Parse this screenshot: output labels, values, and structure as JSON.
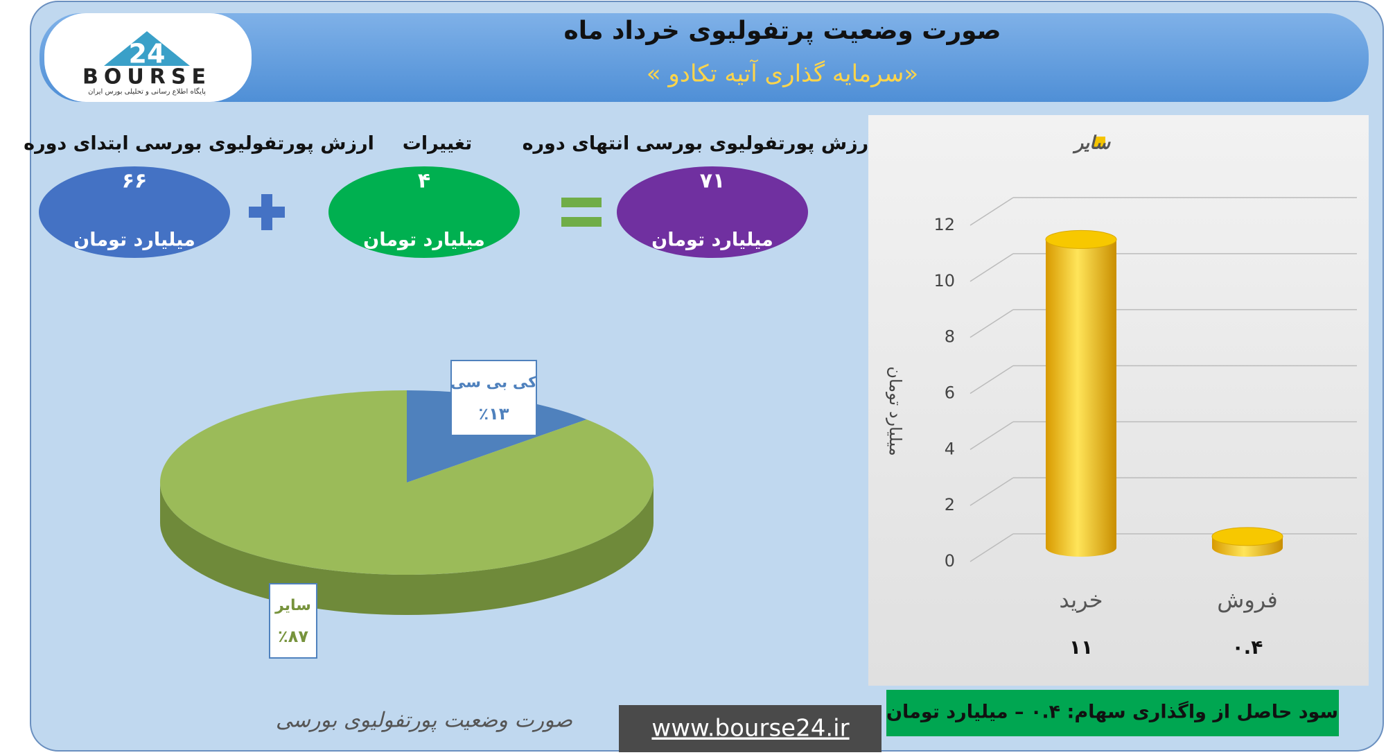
{
  "header": {
    "title": "صورت وضعیت پرتفولیوی خرداد ماه",
    "subtitle": "«سرمایه گذاری آتیه تکادو »"
  },
  "logo": {
    "number": "24",
    "text": "BOURSE",
    "tagline": "پایگاه اطلاع رسانی و تحلیلی بورس ایران"
  },
  "summary": [
    {
      "label": "ارزش پورتفولیوی بورسی ابتدای دوره",
      "value": "۶۶",
      "unit": "میلیارد تومان"
    },
    {
      "label": "تغییرات",
      "value": "۴",
      "unit": "میلیارد تومان"
    },
    {
      "label": "ارزش پورتفولیوی بورسی انتهای دوره",
      "value": "۷۱",
      "unit": "میلیارد تومان"
    }
  ],
  "chart_data": [
    {
      "type": "pie",
      "title": "صورت وضعیت پورتفولیوی بورسی",
      "categories": [
        "کی بی سی",
        "سایر"
      ],
      "values": [
        13,
        87
      ],
      "value_labels": [
        "٪۱۳",
        "٪۸۷"
      ],
      "colors": [
        "#4f81bd",
        "#9bbb59"
      ]
    },
    {
      "type": "bar",
      "y_label": "میلیارد تومان",
      "categories": [
        "خرید",
        "فروش"
      ],
      "series": [
        {
          "name": "سایر",
          "color": "#f5c400",
          "values": [
            11,
            0.4
          ],
          "value_labels": [
            "۱۱",
            "۰.۴"
          ]
        }
      ],
      "ylim": [
        0,
        12
      ],
      "yticks": [
        0,
        2,
        4,
        6,
        8,
        10,
        12
      ],
      "grid": true
    }
  ],
  "footer": {
    "note": "سود حاصل از واگذاری سهام: ۰.۴ – میلیارد تومان",
    "url": "www.bourse24.ir"
  }
}
